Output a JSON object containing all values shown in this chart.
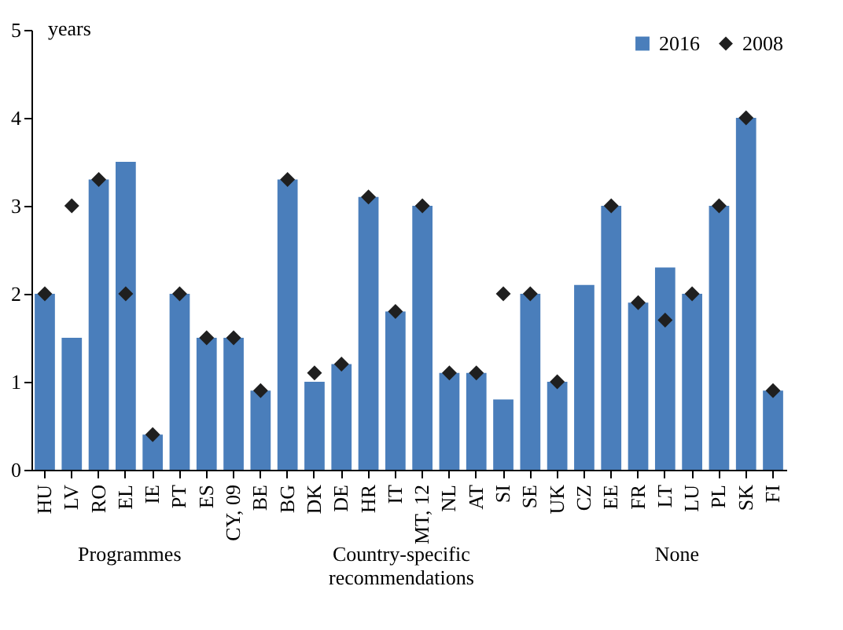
{
  "chart_data": {
    "type": "bar",
    "ylabel": "years",
    "categories": [
      "HU",
      "LV",
      "RO",
      "EL",
      "IE",
      "PT",
      "ES",
      "CY, 09",
      "BE",
      "BG",
      "DK",
      "DE",
      "HR",
      "IT",
      "MT, 12",
      "NL",
      "AT",
      "SI",
      "SE",
      "UK",
      "CZ",
      "EE",
      "FR",
      "LT",
      "LU",
      "PL",
      "SK",
      "FI"
    ],
    "series": [
      {
        "name": "2016",
        "color": "#4a7ebb",
        "values": [
          2.0,
          1.5,
          3.3,
          3.5,
          0.4,
          2.0,
          1.5,
          1.5,
          0.9,
          3.3,
          1.0,
          1.2,
          3.1,
          1.8,
          3.0,
          1.1,
          1.1,
          0.8,
          2.0,
          1.0,
          2.1,
          3.0,
          1.9,
          2.3,
          2.0,
          3.0,
          4.0,
          0.9
        ]
      },
      {
        "name": "2008",
        "type": "scatter",
        "color": "#1f1f1f",
        "values": [
          2.0,
          3.0,
          3.3,
          2.0,
          0.4,
          2.0,
          1.5,
          1.5,
          0.9,
          3.3,
          1.1,
          1.2,
          3.1,
          1.8,
          3.0,
          1.1,
          1.1,
          2.0,
          2.0,
          1.0,
          null,
          3.0,
          1.9,
          1.7,
          2.0,
          3.0,
          4.0,
          0.9
        ]
      }
    ],
    "ylim": [
      0,
      5
    ],
    "yticks": [
      0,
      1,
      2,
      3,
      4,
      5
    ],
    "marker": "diamond",
    "legend": "top right",
    "annotations": [
      "Programmes",
      "Country-specific recommendations",
      "None"
    ]
  }
}
